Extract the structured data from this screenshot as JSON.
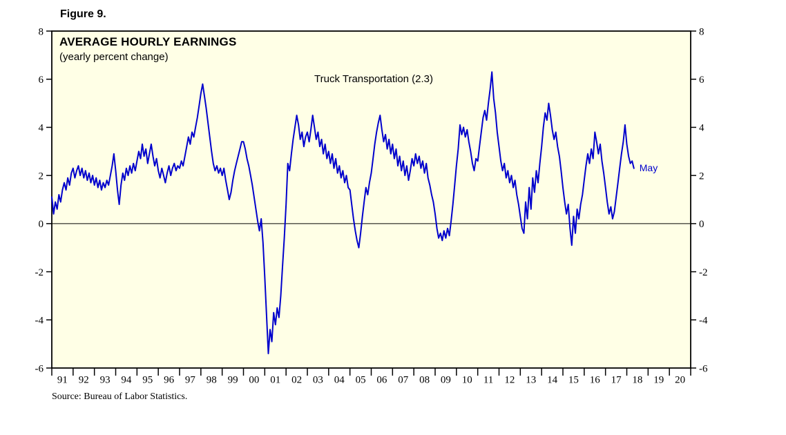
{
  "figure": {
    "label": "Figure 9."
  },
  "chart": {
    "title": "AVERAGE HOURLY EARNINGS",
    "subtitle": "(yearly percent change)",
    "series_label": "Truck Transportation (2.3)",
    "end_label": "May",
    "source": "Source: Bureau of Labor Statistics.",
    "colors": {
      "line": "#0000CC",
      "annotation": "#0000CC",
      "plot_bg": "#FFFFE6",
      "frame": "#000000"
    }
  },
  "chart_data": {
    "type": "line",
    "title": "AVERAGE HOURLY EARNINGS (yearly percent change)",
    "series_name": "Truck Transportation",
    "latest_value": 2.3,
    "latest_label": "May",
    "frequency": "monthly",
    "start": "1991-01",
    "end": "2018-05",
    "ylabel": "yearly percent change",
    "ylim": [
      -6,
      8
    ],
    "yticks": [
      -6,
      -4,
      -2,
      0,
      2,
      4,
      6,
      8
    ],
    "xlim_years": [
      1991,
      2021
    ],
    "grid": false,
    "zero_line": true,
    "x_tick_labels": [
      "91",
      "92",
      "93",
      "94",
      "95",
      "96",
      "97",
      "98",
      "99",
      "00",
      "01",
      "02",
      "03",
      "04",
      "05",
      "06",
      "07",
      "08",
      "09",
      "10",
      "11",
      "12",
      "13",
      "14",
      "15",
      "16",
      "17",
      "18",
      "19",
      "20"
    ],
    "values": [
      1.1,
      0.4,
      0.9,
      0.6,
      1.2,
      0.9,
      1.4,
      1.7,
      1.4,
      1.9,
      1.6,
      2.1,
      2.3,
      1.9,
      2.2,
      2.4,
      2.0,
      2.3,
      1.9,
      2.2,
      1.8,
      2.1,
      1.7,
      2.0,
      1.6,
      1.9,
      1.5,
      1.8,
      1.4,
      1.7,
      1.5,
      1.8,
      1.6,
      2.0,
      2.4,
      2.9,
      2.2,
      1.4,
      0.8,
      1.6,
      2.1,
      1.8,
      2.3,
      2.0,
      2.4,
      2.1,
      2.5,
      2.2,
      2.6,
      3.0,
      2.7,
      3.3,
      2.8,
      3.1,
      2.5,
      2.9,
      3.3,
      2.8,
      2.4,
      2.7,
      2.2,
      1.9,
      2.3,
      2.0,
      1.7,
      2.1,
      2.4,
      2.0,
      2.3,
      2.5,
      2.2,
      2.4,
      2.3,
      2.6,
      2.4,
      2.8,
      3.2,
      3.6,
      3.3,
      3.8,
      3.6,
      4.0,
      4.4,
      4.9,
      5.4,
      5.8,
      5.3,
      4.8,
      4.2,
      3.6,
      3.0,
      2.5,
      2.2,
      2.4,
      2.1,
      2.3,
      2.0,
      2.3,
      1.8,
      1.4,
      1.0,
      1.3,
      1.8,
      2.2,
      2.5,
      2.8,
      3.1,
      3.4,
      3.4,
      3.1,
      2.7,
      2.4,
      2.0,
      1.6,
      1.1,
      0.6,
      0.1,
      -0.3,
      0.2,
      -0.8,
      -2.2,
      -3.8,
      -5.4,
      -4.4,
      -4.9,
      -3.7,
      -4.2,
      -3.5,
      -3.9,
      -3.0,
      -1.8,
      -0.6,
      0.8,
      2.5,
      2.2,
      2.9,
      3.5,
      4.0,
      4.5,
      4.1,
      3.5,
      3.8,
      3.2,
      3.6,
      3.8,
      3.4,
      3.9,
      4.5,
      4.0,
      3.5,
      3.8,
      3.2,
      3.5,
      2.9,
      3.3,
      2.7,
      3.0,
      2.5,
      2.9,
      2.3,
      2.7,
      2.1,
      2.4,
      1.9,
      2.2,
      1.7,
      2.0,
      1.5,
      1.4,
      0.8,
      0.2,
      -0.3,
      -0.7,
      -1.0,
      -0.4,
      0.3,
      0.9,
      1.5,
      1.2,
      1.7,
      2.1,
      2.7,
      3.3,
      3.8,
      4.2,
      4.5,
      3.9,
      3.4,
      3.7,
      3.1,
      3.5,
      2.9,
      3.3,
      2.7,
      3.1,
      2.4,
      2.8,
      2.2,
      2.6,
      2.0,
      2.4,
      1.8,
      2.2,
      2.7,
      2.4,
      2.9,
      2.5,
      2.8,
      2.3,
      2.6,
      2.1,
      2.5,
      1.9,
      1.6,
      1.2,
      0.9,
      0.4,
      -0.2,
      -0.6,
      -0.4,
      -0.7,
      -0.3,
      -0.6,
      -0.2,
      -0.5,
      0.1,
      0.8,
      1.6,
      2.4,
      3.1,
      4.1,
      3.7,
      4.0,
      3.6,
      3.9,
      3.4,
      3.0,
      2.5,
      2.2,
      2.7,
      2.6,
      3.2,
      3.8,
      4.4,
      4.7,
      4.3,
      5.0,
      5.6,
      6.3,
      5.2,
      4.6,
      3.8,
      3.2,
      2.6,
      2.2,
      2.5,
      1.9,
      2.2,
      1.7,
      2.0,
      1.5,
      1.8,
      1.2,
      0.8,
      0.3,
      -0.2,
      -0.4,
      0.9,
      0.2,
      1.5,
      0.6,
      1.9,
      1.3,
      2.2,
      1.7,
      2.5,
      3.2,
      4.0,
      4.6,
      4.3,
      5.0,
      4.5,
      3.9,
      3.5,
      3.8,
      3.2,
      2.8,
      2.2,
      1.5,
      0.9,
      0.4,
      0.8,
      -0.2,
      -0.9,
      0.3,
      -0.4,
      0.6,
      0.2,
      0.8,
      1.2,
      1.8,
      2.4,
      2.9,
      2.5,
      3.1,
      2.7,
      3.8,
      3.4,
      2.9,
      3.3,
      2.6,
      2.1,
      1.5,
      0.9,
      0.4,
      0.7,
      0.2,
      0.5,
      1.1,
      1.7,
      2.3,
      2.9,
      3.4,
      4.1,
      3.3,
      2.8,
      2.5,
      2.6,
      2.3
    ]
  }
}
